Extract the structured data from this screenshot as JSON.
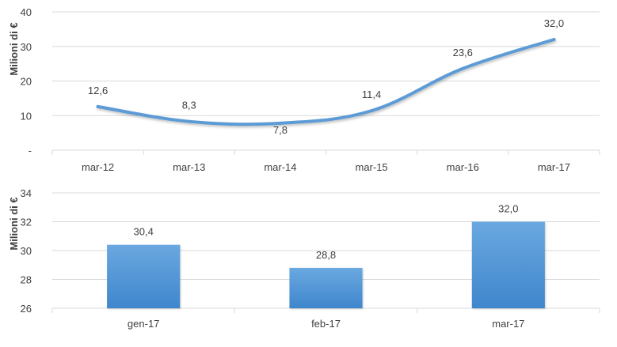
{
  "chart_data": [
    {
      "type": "line",
      "title": "",
      "xlabel": "",
      "ylabel": "Milioni di €",
      "categories": [
        "mar-12",
        "mar-13",
        "mar-14",
        "mar-15",
        "mar-16",
        "mar-17"
      ],
      "values": [
        12.6,
        8.3,
        7.8,
        11.4,
        23.6,
        32.0
      ],
      "data_labels": [
        "12,6",
        "8,3",
        "7,8",
        "11,4",
        "23,6",
        "32,0"
      ],
      "ylim": [
        0,
        40
      ],
      "yticks": [
        0,
        10,
        20,
        30,
        40
      ],
      "ytick_labels": [
        "-",
        "10",
        "20",
        "30",
        "40"
      ],
      "grid": true,
      "legend": "none",
      "color": "#5b9bd5"
    },
    {
      "type": "bar",
      "title": "",
      "xlabel": "",
      "ylabel": "Milioni di €",
      "categories": [
        "gen-17",
        "feb-17",
        "mar-17"
      ],
      "values": [
        30.4,
        28.8,
        32.0
      ],
      "data_labels": [
        "30,4",
        "28,8",
        "32,0"
      ],
      "ylim": [
        26,
        34
      ],
      "yticks": [
        26,
        28,
        30,
        32,
        34
      ],
      "ytick_labels": [
        "26",
        "28",
        "30",
        "32",
        "34"
      ],
      "grid": true,
      "legend": "none",
      "color": "#5b9bd5"
    }
  ]
}
